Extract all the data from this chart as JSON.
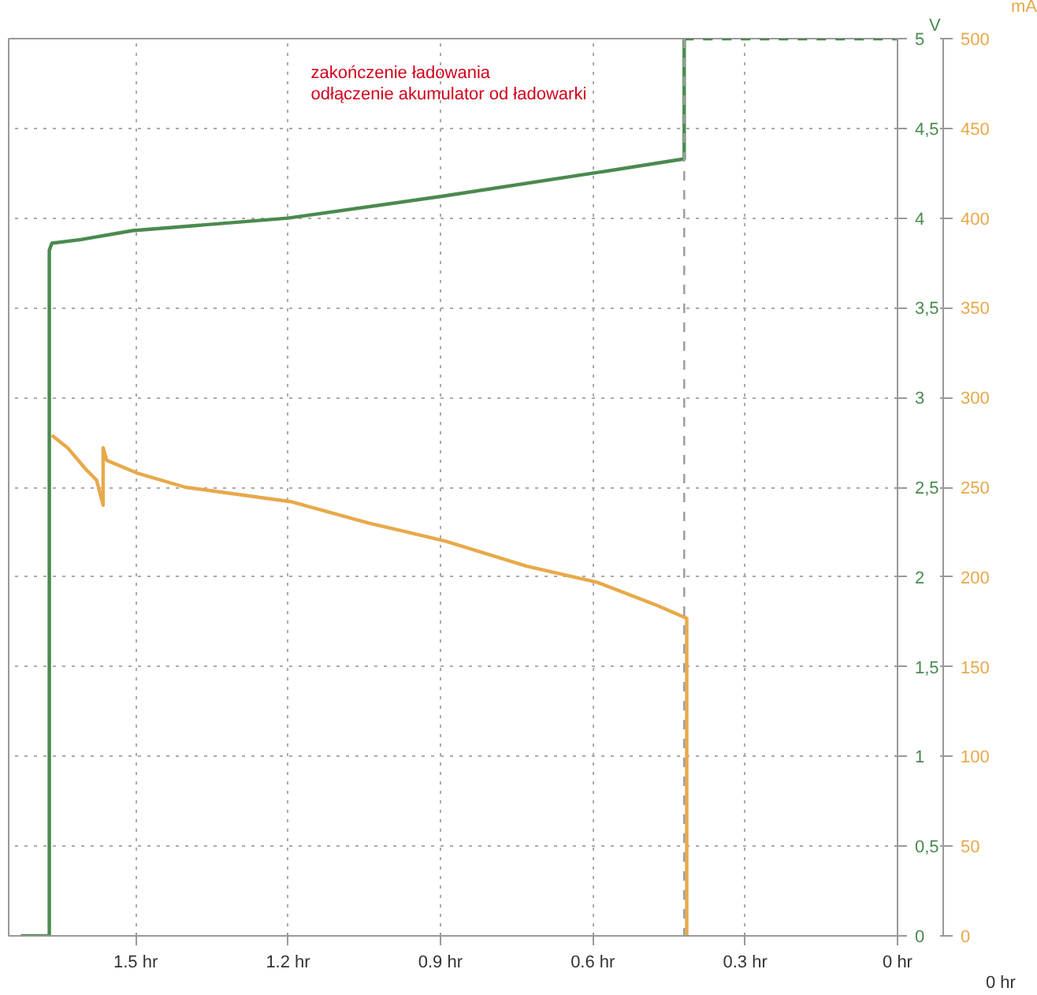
{
  "chart_data": {
    "type": "line",
    "xlim": [
      1.75,
      0
    ],
    "xticks": [
      {
        "value": 1.5,
        "label": "1.5 hr"
      },
      {
        "value": 1.2,
        "label": "1.2 hr"
      },
      {
        "value": 0.9,
        "label": "0.9 hr"
      },
      {
        "value": 0.6,
        "label": "0.6 hr"
      },
      {
        "value": 0.3,
        "label": "0.3 hr"
      },
      {
        "value": 0,
        "label": "0 hr"
      }
    ],
    "ylim": [
      0,
      5
    ],
    "yticks": [
      0,
      {
        "value": 0.5,
        "label": "0,5"
      },
      1,
      {
        "value": 1.5,
        "label": "1,5"
      },
      2,
      {
        "value": 2.5,
        "label": "2,5"
      },
      3,
      {
        "value": 3.5,
        "label": "3,5"
      },
      4,
      {
        "value": 4.5,
        "label": "4,5"
      },
      5
    ],
    "y2lim": [
      0,
      500
    ],
    "y2ticks": [
      0,
      50,
      100,
      150,
      200,
      250,
      300,
      350,
      400,
      450,
      500
    ],
    "ylabel": "V",
    "y2label": "mA",
    "grid": true,
    "series": [
      {
        "color": "#4a8a4f",
        "line_style": "solid",
        "x": [
          1.726,
          1.67,
          1.67,
          1.665,
          1.608,
          1.506,
          1.2,
          0.9,
          0.6,
          0.42,
          0.42
        ],
        "values": [
          0,
          0,
          3.82,
          3.86,
          3.88,
          3.93,
          4.0,
          4.12,
          4.25,
          4.33,
          5
        ]
      },
      {
        "color": "#4a8a4f",
        "line_style": "dashed",
        "x": [
          0.42,
          0
        ],
        "values": [
          5,
          5
        ]
      },
      {
        "color": "#e8a94a",
        "line_style": "solid",
        "axis": "y2",
        "x": [
          1.665,
          1.634,
          1.598,
          1.577,
          1.564,
          1.564,
          1.557,
          1.498,
          1.402,
          1.195,
          1.04,
          0.89,
          0.73,
          0.591,
          0.472,
          0.415,
          0.415
        ],
        "values": [
          279,
          272,
          260,
          254,
          240,
          272,
          265,
          258,
          250,
          242,
          230,
          220,
          206,
          197,
          184,
          177,
          0
        ]
      }
    ],
    "ref_lines": [
      {
        "axis": "x",
        "value": 0.42,
        "color": "#a0a0a0",
        "line_style": "dashed"
      }
    ],
    "annotations": [
      "zakończenie ładowania",
      "odłączenie akumulator od ładowarki",
      "0 hr"
    ]
  }
}
